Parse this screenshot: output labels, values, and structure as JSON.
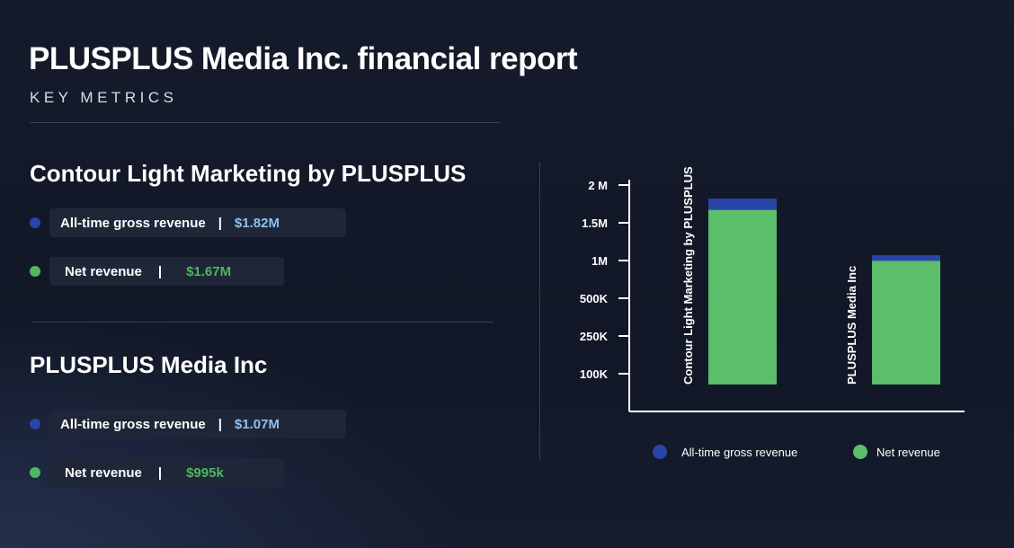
{
  "header": {
    "title": "PLUSPLUS Media Inc. financial report",
    "subtitle": "KEY METRICS"
  },
  "sections": [
    {
      "title": "Contour Light Marketing by PLUSPLUS",
      "metrics": [
        {
          "label": "All-time gross revenue",
          "value": "$1.82M",
          "color": "#2a45a8",
          "value_color": "#8fc0ef"
        },
        {
          "label": "Net revenue",
          "value": "$1.67M",
          "color": "#4cb860",
          "value_color": "#4cb860"
        }
      ]
    },
    {
      "title": "PLUSPLUS Media Inc",
      "metrics": [
        {
          "label": "All-time gross revenue",
          "value": "$1.07M",
          "color": "#2a45a8",
          "value_color": "#8fc0ef"
        },
        {
          "label": "Net revenue",
          "value": "$995k",
          "color": "#4cb860",
          "value_color": "#4cb860"
        }
      ]
    }
  ],
  "separator": "|",
  "colors": {
    "gross": "#2a45a8",
    "net": "#5abe6a",
    "background": "#131a29",
    "pill": "#1f2637"
  },
  "chart_data": {
    "type": "bar",
    "stacked": true,
    "categories": [
      "Contour Light Marketing by PLUSPLUS",
      "PLUSPLUS Media Inc"
    ],
    "series": [
      {
        "name": "All-time gross revenue",
        "values": [
          1.82,
          1.07
        ],
        "color": "#2a45a8"
      },
      {
        "name": "Net revenue",
        "values": [
          1.67,
          0.995
        ],
        "color": "#5abe6a"
      }
    ],
    "yticks": [
      "100K",
      "250K",
      "500K",
      "1M",
      "1.5M",
      "2 M"
    ],
    "ylabel": "",
    "xlabel": "",
    "legend_position": "bottom",
    "grid": false
  }
}
